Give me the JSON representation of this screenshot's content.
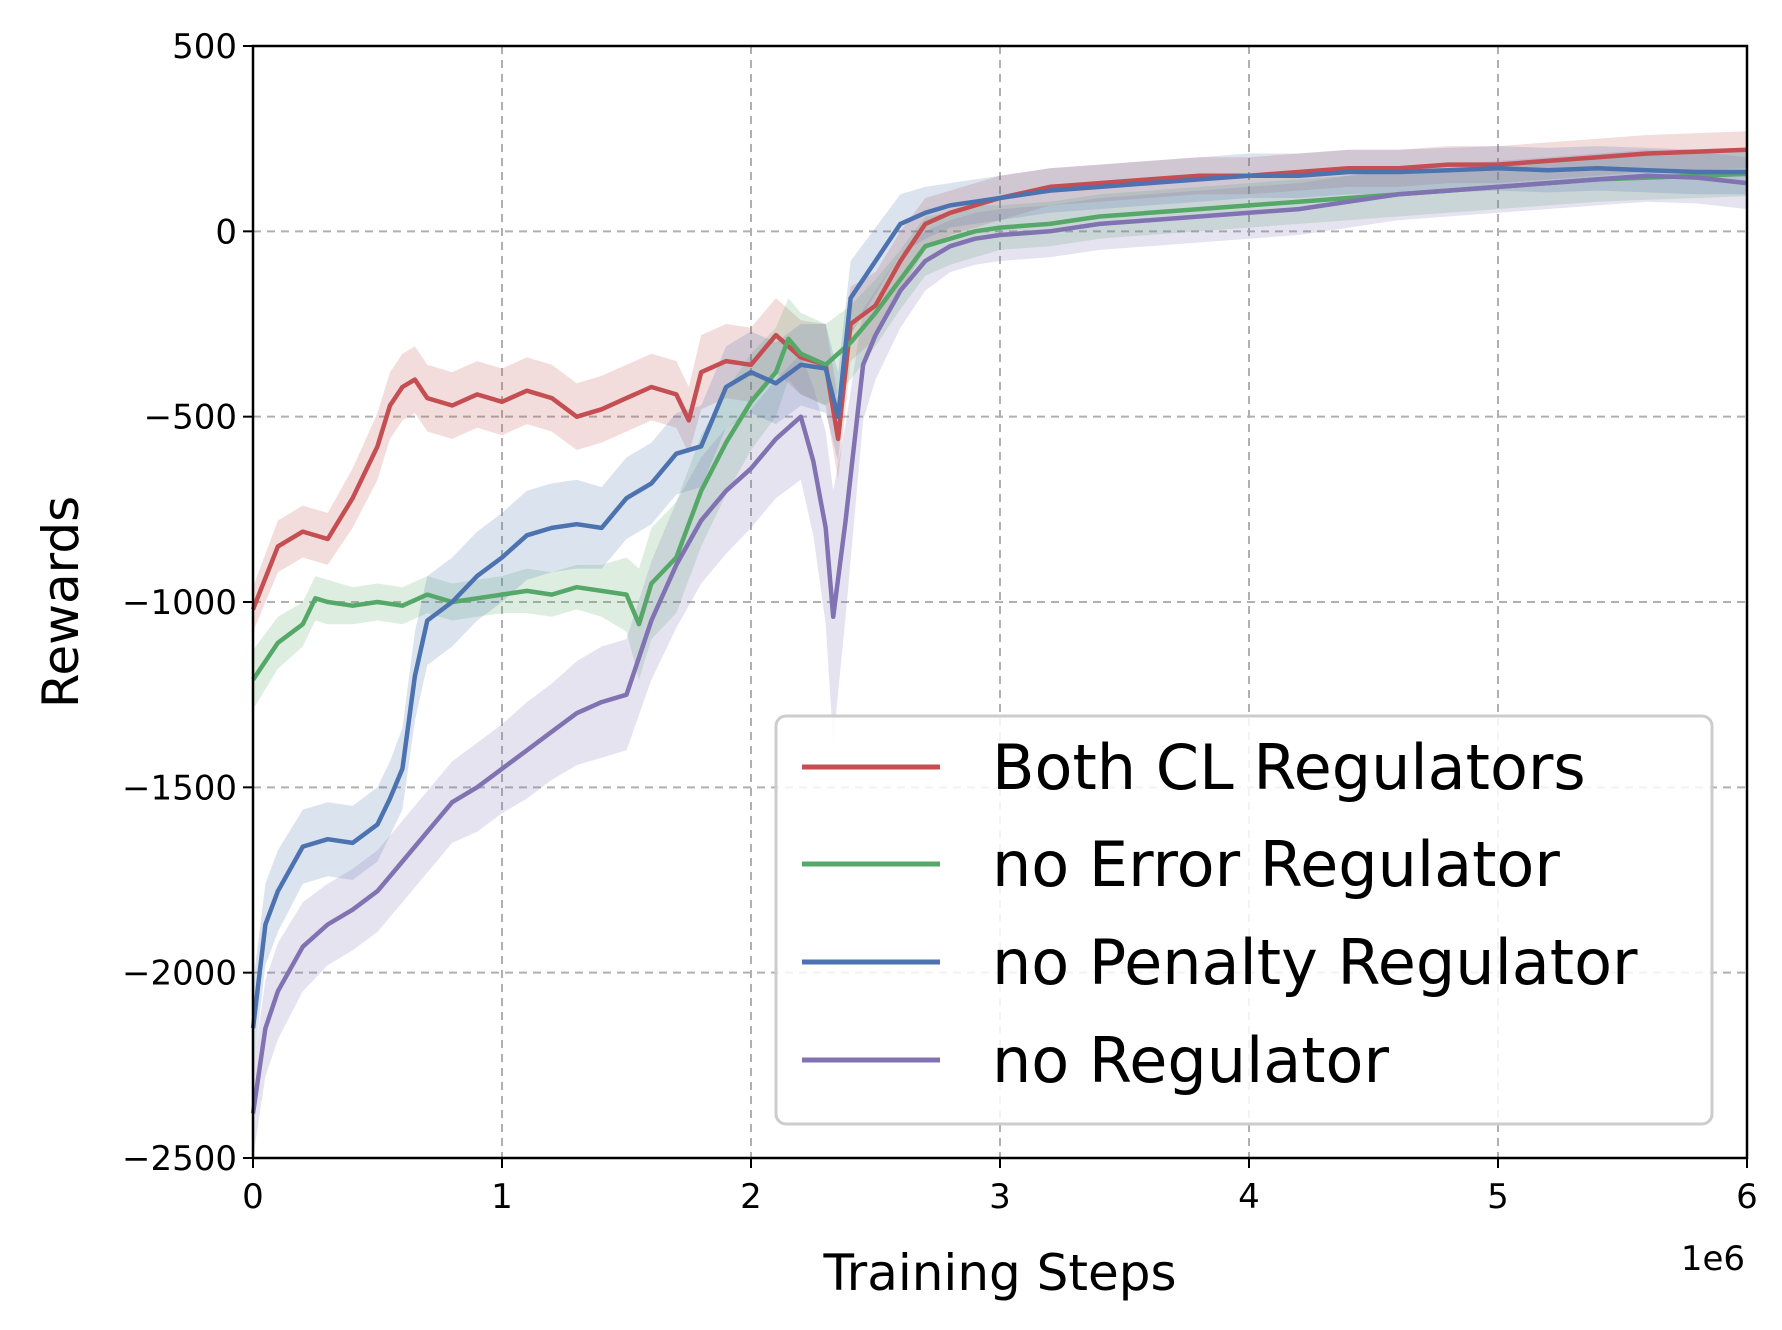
{
  "chart_data": {
    "type": "line",
    "title": "",
    "xlabel": "Training Steps",
    "ylabel": "Rewards",
    "x_offset_label": "1e6",
    "xlim": [
      0,
      6
    ],
    "ylim": [
      -2500,
      500
    ],
    "xticks": [
      0,
      1,
      2,
      3,
      4,
      5,
      6
    ],
    "xtick_labels": [
      "0",
      "1",
      "2",
      "3",
      "4",
      "5",
      "6"
    ],
    "yticks": [
      500,
      0,
      -500,
      -1000,
      -1500,
      -2000,
      -2500
    ],
    "ytick_labels": [
      "500",
      "0",
      "−500",
      "−1000",
      "−1500",
      "−2000",
      "−2500"
    ],
    "grid": true,
    "legend_position": "lower-right",
    "series": [
      {
        "name": "Both CL Regulators",
        "color": "#c44e52",
        "x": [
          0,
          0.1,
          0.2,
          0.3,
          0.4,
          0.5,
          0.55,
          0.6,
          0.65,
          0.7,
          0.8,
          0.9,
          1.0,
          1.1,
          1.2,
          1.3,
          1.4,
          1.5,
          1.6,
          1.7,
          1.75,
          1.8,
          1.9,
          2.0,
          2.1,
          2.2,
          2.3,
          2.35,
          2.4,
          2.5,
          2.6,
          2.7,
          2.8,
          2.9,
          3.0,
          3.2,
          3.4,
          3.6,
          3.8,
          4.0,
          4.2,
          4.4,
          4.6,
          4.8,
          5.0,
          5.2,
          5.4,
          5.6,
          5.8,
          6.0
        ],
        "y": [
          -1020,
          -850,
          -810,
          -830,
          -720,
          -580,
          -470,
          -420,
          -400,
          -450,
          -470,
          -440,
          -460,
          -430,
          -450,
          -500,
          -480,
          -450,
          -420,
          -440,
          -510,
          -380,
          -350,
          -360,
          -280,
          -340,
          -360,
          -560,
          -250,
          -200,
          -80,
          20,
          50,
          70,
          90,
          120,
          130,
          140,
          150,
          150,
          160,
          170,
          170,
          180,
          180,
          190,
          200,
          210,
          215,
          220
        ],
        "band": [
          60,
          70,
          70,
          70,
          80,
          90,
          90,
          90,
          90,
          90,
          90,
          90,
          90,
          90,
          90,
          90,
          90,
          90,
          90,
          90,
          90,
          100,
          100,
          100,
          100,
          100,
          110,
          110,
          100,
          90,
          80,
          70,
          60,
          60,
          60,
          50,
          50,
          50,
          50,
          50,
          50,
          50,
          50,
          50,
          50,
          50,
          50,
          50,
          50,
          50
        ]
      },
      {
        "name": "no Error Regulator",
        "color": "#55a868",
        "x": [
          0,
          0.1,
          0.2,
          0.25,
          0.3,
          0.4,
          0.5,
          0.6,
          0.7,
          0.8,
          0.9,
          1.0,
          1.1,
          1.2,
          1.3,
          1.4,
          1.5,
          1.55,
          1.6,
          1.7,
          1.8,
          1.9,
          2.0,
          2.1,
          2.15,
          2.2,
          2.3,
          2.4,
          2.5,
          2.6,
          2.7,
          2.8,
          2.9,
          3.0,
          3.2,
          3.4,
          3.6,
          3.8,
          4.0,
          4.2,
          4.4,
          4.6,
          4.8,
          5.0,
          5.2,
          5.4,
          5.6,
          5.8,
          6.0
        ],
        "y": [
          -1210,
          -1110,
          -1060,
          -990,
          -1000,
          -1010,
          -1000,
          -1010,
          -980,
          -1000,
          -990,
          -980,
          -970,
          -980,
          -960,
          -970,
          -980,
          -1060,
          -950,
          -880,
          -700,
          -570,
          -460,
          -380,
          -290,
          -330,
          -360,
          -300,
          -220,
          -130,
          -40,
          -20,
          0,
          10,
          20,
          40,
          50,
          60,
          70,
          80,
          90,
          100,
          110,
          120,
          130,
          140,
          145,
          150,
          155
        ],
        "band": [
          80,
          70,
          60,
          60,
          60,
          50,
          50,
          50,
          50,
          50,
          50,
          50,
          60,
          60,
          60,
          70,
          100,
          150,
          150,
          150,
          150,
          140,
          130,
          120,
          110,
          110,
          110,
          100,
          90,
          80,
          80,
          70,
          70,
          60,
          60,
          60,
          60,
          60,
          60,
          60,
          60,
          60,
          60,
          60,
          60,
          60,
          60,
          60,
          60
        ]
      },
      {
        "name": "no Penalty Regulator",
        "color": "#4c72b0",
        "x": [
          0,
          0.05,
          0.1,
          0.2,
          0.3,
          0.4,
          0.5,
          0.55,
          0.6,
          0.65,
          0.7,
          0.8,
          0.9,
          1.0,
          1.1,
          1.2,
          1.3,
          1.4,
          1.5,
          1.6,
          1.7,
          1.8,
          1.9,
          2.0,
          2.1,
          2.2,
          2.3,
          2.35,
          2.4,
          2.5,
          2.6,
          2.7,
          2.8,
          2.9,
          3.0,
          3.2,
          3.4,
          3.6,
          3.8,
          4.0,
          4.2,
          4.4,
          4.6,
          4.8,
          5.0,
          5.2,
          5.4,
          5.6,
          5.8,
          6.0
        ],
        "y": [
          -2150,
          -1870,
          -1780,
          -1660,
          -1640,
          -1650,
          -1600,
          -1530,
          -1450,
          -1200,
          -1050,
          -1000,
          -930,
          -880,
          -820,
          -800,
          -790,
          -800,
          -720,
          -680,
          -600,
          -580,
          -420,
          -380,
          -410,
          -360,
          -370,
          -500,
          -180,
          -80,
          20,
          50,
          70,
          80,
          90,
          110,
          120,
          130,
          140,
          150,
          150,
          160,
          160,
          165,
          170,
          165,
          170,
          165,
          160,
          160
        ],
        "band": [
          120,
          110,
          110,
          100,
          100,
          100,
          100,
          100,
          110,
          120,
          120,
          120,
          120,
          120,
          120,
          120,
          120,
          110,
          110,
          110,
          110,
          110,
          110,
          110,
          110,
          110,
          120,
          120,
          100,
          90,
          80,
          70,
          60,
          60,
          60,
          60,
          60,
          60,
          60,
          60,
          60,
          60,
          60,
          60,
          60,
          60,
          60,
          60,
          60,
          60
        ]
      },
      {
        "name": "no Regulator",
        "color": "#8172b2",
        "x": [
          0,
          0.05,
          0.1,
          0.2,
          0.3,
          0.4,
          0.5,
          0.6,
          0.7,
          0.8,
          0.9,
          1.0,
          1.1,
          1.2,
          1.3,
          1.4,
          1.5,
          1.6,
          1.7,
          1.8,
          1.9,
          2.0,
          2.1,
          2.2,
          2.25,
          2.3,
          2.33,
          2.38,
          2.45,
          2.5,
          2.6,
          2.7,
          2.8,
          2.9,
          3.0,
          3.2,
          3.4,
          3.6,
          3.8,
          4.0,
          4.2,
          4.4,
          4.6,
          4.8,
          5.0,
          5.2,
          5.4,
          5.6,
          5.8,
          6.0
        ],
        "y": [
          -2380,
          -2150,
          -2050,
          -1930,
          -1870,
          -1830,
          -1780,
          -1700,
          -1620,
          -1540,
          -1500,
          -1450,
          -1400,
          -1350,
          -1300,
          -1270,
          -1250,
          -1050,
          -900,
          -780,
          -700,
          -640,
          -560,
          -500,
          -620,
          -800,
          -1040,
          -780,
          -360,
          -280,
          -160,
          -80,
          -40,
          -20,
          -10,
          0,
          20,
          30,
          40,
          50,
          60,
          80,
          100,
          110,
          120,
          130,
          140,
          150,
          145,
          130
        ],
        "band": [
          120,
          130,
          130,
          120,
          110,
          110,
          110,
          110,
          110,
          110,
          120,
          120,
          130,
          130,
          140,
          150,
          150,
          160,
          170,
          170,
          170,
          160,
          160,
          170,
          200,
          260,
          340,
          260,
          150,
          120,
          100,
          80,
          70,
          70,
          70,
          70,
          70,
          70,
          70,
          70,
          70,
          70,
          70,
          70,
          70,
          70,
          70,
          70,
          70,
          70
        ]
      }
    ]
  }
}
